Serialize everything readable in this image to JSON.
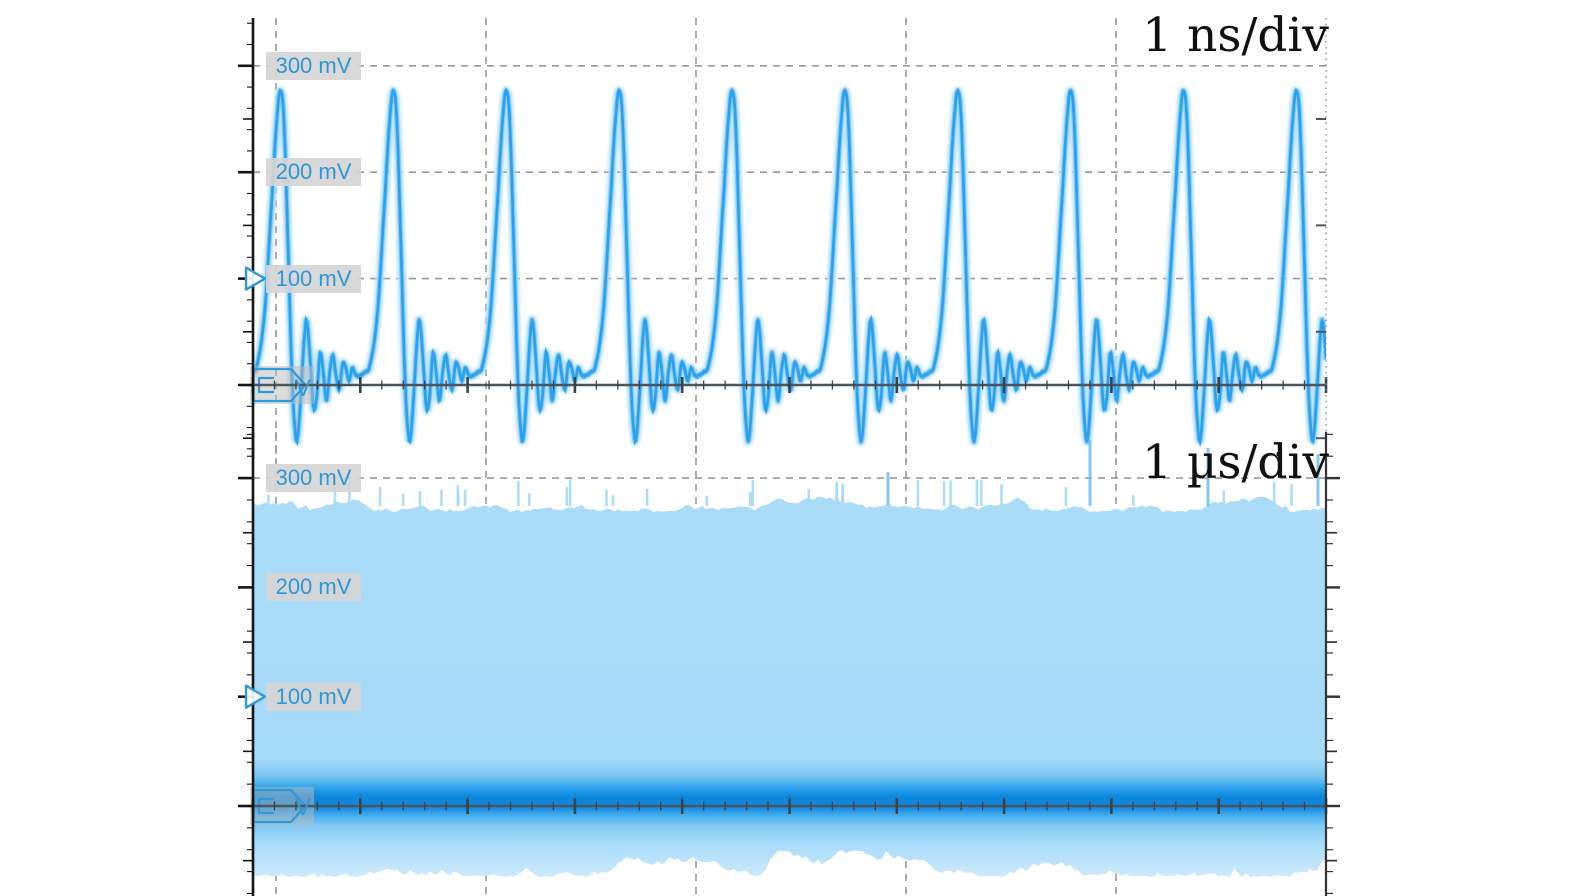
{
  "scope_figure": {
    "panels": [
      {
        "timebase": "1 ns/div",
        "y_labels": [
          "300 mV",
          "200 mV",
          "100 mV"
        ],
        "marker_v": "V"
      },
      {
        "timebase": "1 µs/div",
        "y_labels": [
          "300 mV",
          "200 mV",
          "100 mV"
        ],
        "marker_v": "V"
      }
    ]
  },
  "colors": {
    "trace_core": "#28a0ed",
    "trace_mid": "#7cc6f4",
    "trace_glow": "#b7e0fa",
    "label_text_blue": "#2e96d6",
    "label_bg_gray": "#d5d5d5",
    "grid_dash_gray": "#999999",
    "axis_black": "#151515",
    "zero_line": "#4a555c",
    "zero_tick": "#39434a",
    "marker_blue": "#2f9ad8",
    "band_gradient": [
      "#aadcf8",
      "#a5daf8",
      "#79c5f2",
      "#2fa3ed",
      "#0d88dd",
      "#0f86da",
      "#3ea9ee",
      "#7fc7f3",
      "#a5daf8",
      "#cfeafc"
    ],
    "band_spike_light": "#a6daf8",
    "band_spike_strong": "#6fc0f2"
  },
  "chart_data": [
    {
      "type": "line",
      "panel": "top",
      "timebase_per_div": "1 ns",
      "x_unit": "ns",
      "x_range_div": [
        0,
        10
      ],
      "y_unit": "mV",
      "y_tick_labels_mV": [
        300,
        200,
        100
      ],
      "zero_baseline_mV": 0,
      "trigger_level_mV": 100,
      "pulse_period_ns": 1.052,
      "first_peak_ns": 0.26,
      "num_visible_pulses": 10,
      "peak_amplitude_mV": 276,
      "undershoot_mV": -50,
      "interpulse_behavior": "damped ringing of about +/-25 mV around ~10 mV baseline",
      "pulse_shape_keypoints_dtns_mV": [
        [
          -0.318,
          9
        ],
        [
          -0.27,
          12
        ],
        [
          -0.22,
          20
        ],
        [
          -0.15,
          70
        ],
        [
          -0.08,
          180
        ],
        [
          -0.03,
          258
        ],
        [
          0,
          276
        ],
        [
          0.03,
          245
        ],
        [
          0.07,
          120
        ],
        [
          0.105,
          5
        ],
        [
          0.135,
          -45
        ],
        [
          0.155,
          -50
        ],
        [
          0.185,
          -10
        ],
        [
          0.225,
          52
        ],
        [
          0.245,
          58
        ],
        [
          0.275,
          20
        ],
        [
          0.305,
          -22
        ],
        [
          0.335,
          -10
        ],
        [
          0.365,
          30
        ],
        [
          0.395,
          12
        ],
        [
          0.425,
          -15
        ],
        [
          0.455,
          12
        ],
        [
          0.485,
          28
        ],
        [
          0.515,
          8
        ],
        [
          0.545,
          -4
        ],
        [
          0.575,
          20
        ],
        [
          0.605,
          16
        ],
        [
          0.635,
          4
        ],
        [
          0.665,
          16
        ],
        [
          0.695,
          10
        ],
        [
          0.72,
          8
        ],
        [
          0.734,
          9
        ]
      ]
    },
    {
      "type": "area",
      "panel": "bottom",
      "timebase_per_div": "1 µs",
      "x_unit": "µs",
      "x_range_div": [
        0,
        10
      ],
      "y_unit": "mV",
      "y_tick_labels_mV": [
        300,
        200,
        100
      ],
      "trigger_level_mV": 100,
      "envelope_top_mV": 285,
      "envelope_bottom_mV": -55,
      "dense_core_mV": [
        -3,
        18
      ],
      "appearance": "solid persistence band, darkest just above 0 mV, ragged noisy edges"
    }
  ]
}
